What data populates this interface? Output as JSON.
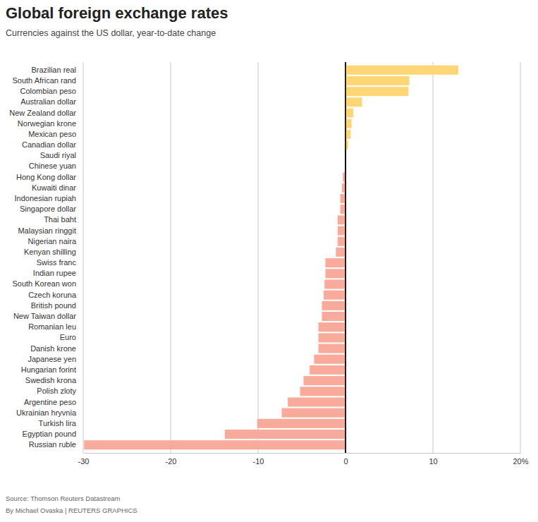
{
  "chart_data": {
    "type": "bar",
    "orientation": "horizontal",
    "title": "Global foreign exchange rates",
    "subtitle": "Currencies against the US dollar, year-to-date change",
    "source": "Source: Thomson Reuters Datastream",
    "byline": "By Michael Ovaska | REUTERS GRAPHICS",
    "categories": [
      "Brazilian real",
      "South African rand",
      "Colombian peso",
      "Australian dollar",
      "New Zealand dollar",
      "Norwegian krone",
      "Mexican peso",
      "Canadian dollar",
      "Saudi riyal",
      "Chinese yuan",
      "Hong Kong dollar",
      "Kuwaiti dinar",
      "Indonesian rupiah",
      "Singapore dollar",
      "Thai baht",
      "Malaysian ringgit",
      "Nigerian naira",
      "Kenyan shilling",
      "Swiss franc",
      "Indian rupee",
      "South Korean won",
      "Czech koruna",
      "British pound",
      "New Taiwan dollar",
      "Romanian leu",
      "Euro",
      "Danish krone",
      "Japanese yen",
      "Hungarian forint",
      "Swedish krona",
      "Polish zloty",
      "Argentine peso",
      "Ukrainian hryvnia",
      "Turkish lira",
      "Egyptian pound",
      "Russian ruble"
    ],
    "values": [
      12.9,
      7.3,
      7.2,
      1.9,
      0.9,
      0.7,
      0.6,
      0.3,
      0,
      0,
      -0.3,
      -0.4,
      -0.6,
      -0.6,
      -0.9,
      -0.9,
      -0.9,
      -1.1,
      -2.3,
      -2.3,
      -2.4,
      -2.5,
      -2.7,
      -2.7,
      -3.1,
      -3.1,
      -3.1,
      -3.6,
      -4.1,
      -4.8,
      -5.2,
      -6.6,
      -7.3,
      -10.1,
      -13.8,
      -29.9
    ],
    "colors": [
      "#ffd675",
      "#ffd675",
      "#ffd675",
      "#ffd675",
      "#ffd675",
      "#ffd675",
      "#ffd675",
      "#ffd675",
      "#ffd675",
      "#ffd675",
      "#f9ab9b",
      "#f9ab9b",
      "#f9ab9b",
      "#f9ab9b",
      "#f9ab9b",
      "#f9ab9b",
      "#f9ab9b",
      "#f9ab9b",
      "#f9ab9b",
      "#f9ab9b",
      "#f9ab9b",
      "#f9ab9b",
      "#f9ab9b",
      "#f9ab9b",
      "#f9ab9b",
      "#f9ab9b",
      "#f9ab9b",
      "#f9ab9b",
      "#f9ab9b",
      "#f9ab9b",
      "#f9ab9b",
      "#f9ab9b",
      "#f9ab9b",
      "#f9ab9b",
      "#f9ab9b",
      "#f9ab9b"
    ],
    "xlim": [
      -30,
      20
    ],
    "xticks": [
      -30,
      -20,
      -10,
      0,
      10,
      {
        "value": 20,
        "label": "20%"
      }
    ],
    "grid": true
  }
}
